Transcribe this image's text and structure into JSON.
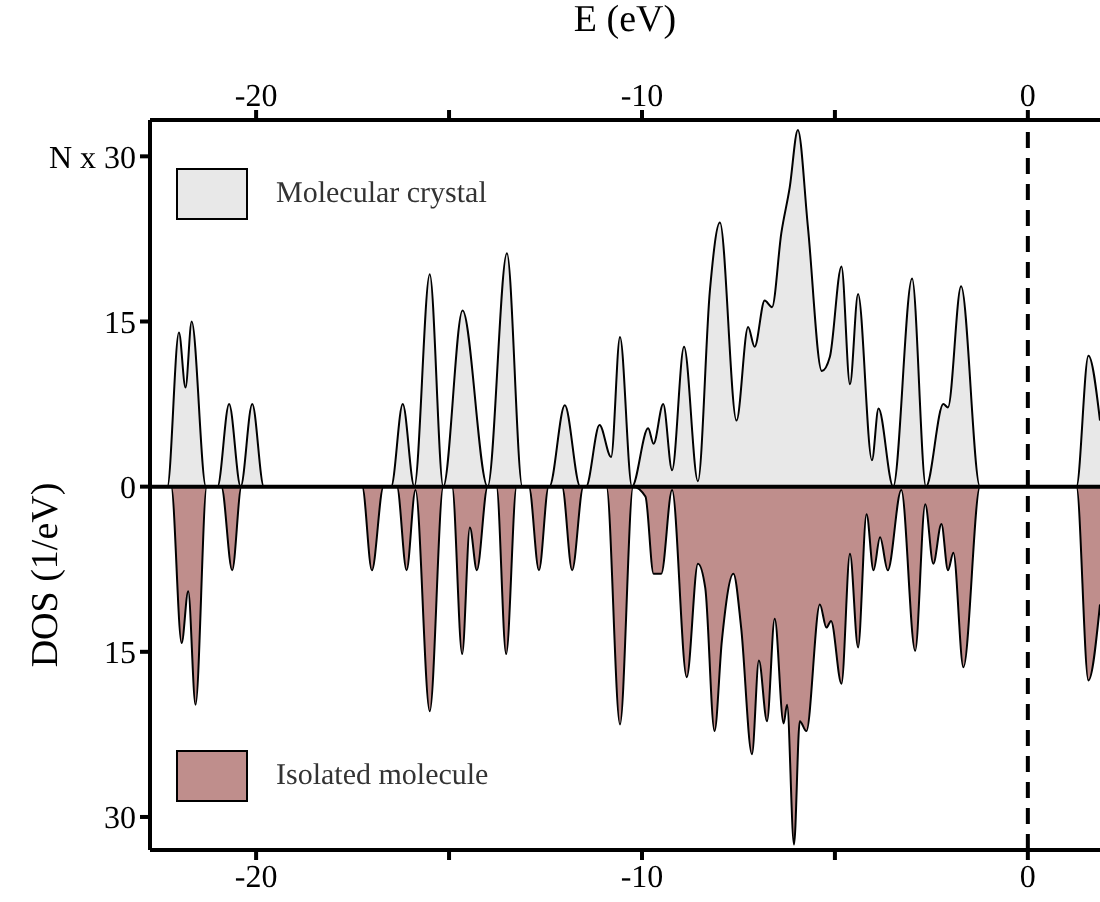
{
  "chart_data": {
    "type": "area",
    "x2label": "E (eV)",
    "ylabel": "DOS (1/eV)",
    "xlim": [
      -22.75,
      1.87
    ],
    "xticks": [
      -20,
      {
        "value": -15,
        "label": null
      },
      -10,
      {
        "value": -5,
        "label": null
      },
      0
    ],
    "x2lim": [
      -22.75,
      1.87
    ],
    "x2ticks": [
      -20,
      {
        "value": -15,
        "label": null
      },
      -10,
      {
        "value": -5,
        "label": null
      },
      0
    ],
    "ylim": [
      -33,
      33.3
    ],
    "yticks": [
      {
        "value": 30,
        "label": "N x 30"
      },
      15,
      0,
      {
        "value": -15,
        "label": "15"
      },
      {
        "value": -30,
        "label": "30"
      }
    ],
    "grid": false,
    "legend": "left",
    "ref_lines": [
      {
        "axis": "y",
        "value": 0,
        "line_style": "solid"
      },
      {
        "axis": "x",
        "value": 0,
        "line_style": "dashed"
      }
    ],
    "series": [
      {
        "name": "Molecular crystal",
        "color": "#e8e8e8",
        "x": [
          -22.75,
          -22.3,
          -22.0,
          -21.83,
          -21.67,
          -21.3,
          -21.0,
          -20.7,
          -20.4,
          -20.1,
          -19.8,
          -16.5,
          -16.2,
          -15.9,
          -15.5,
          -15.15,
          -14.65,
          -14.0,
          -13.5,
          -13.1,
          -12.4,
          -12.0,
          -11.6,
          -11.45,
          -11.1,
          -10.8,
          -10.57,
          -10.26,
          -9.84,
          -9.7,
          -9.45,
          -9.22,
          -8.91,
          -8.55,
          -8.24,
          -7.98,
          -7.55,
          -7.25,
          -7.08,
          -6.82,
          -6.63,
          -6.39,
          -6.17,
          -5.96,
          -5.7,
          -5.34,
          -5.13,
          -4.83,
          -4.61,
          -4.4,
          -4.04,
          -3.87,
          -3.49,
          -3.0,
          -2.64,
          -2.19,
          -2.07,
          -1.73,
          -1.24,
          1.26,
          1.57,
          1.87
        ],
        "values": [
          0,
          0,
          14,
          9,
          15,
          0,
          0,
          7.5,
          0,
          7.5,
          0,
          0,
          7.5,
          0,
          19.3,
          0,
          16,
          0,
          21.2,
          0,
          0,
          7.4,
          0,
          0,
          5.6,
          2.7,
          13.6,
          0,
          5.3,
          3.9,
          7.5,
          1.5,
          12.7,
          0.5,
          17.8,
          24,
          6,
          14.5,
          12.7,
          16.9,
          16.3,
          23,
          27.2,
          32.4,
          23.6,
          10.5,
          11.8,
          20,
          9.3,
          17.5,
          2.4,
          7.1,
          0,
          18.9,
          0,
          7.5,
          7.2,
          18.2,
          0,
          0,
          11.9,
          6
        ]
      },
      {
        "name": "Isolated molecule",
        "color": "#bf8e8c",
        "x": [
          -22.75,
          -22.2,
          -21.93,
          -21.76,
          -21.57,
          -21.28,
          -20.9,
          -20.62,
          -20.38,
          -17.25,
          -17.0,
          -16.7,
          -16.35,
          -16.1,
          -15.87,
          -15.5,
          -15.15,
          -14.92,
          -14.66,
          -14.46,
          -14.28,
          -14.0,
          -13.77,
          -13.52,
          -13.25,
          -12.93,
          -12.67,
          -12.42,
          -12.07,
          -11.81,
          -11.52,
          -10.92,
          -10.57,
          -10.23,
          -9.91,
          -9.7,
          -9.5,
          -9.22,
          -8.84,
          -8.55,
          -8.36,
          -8.12,
          -7.93,
          -7.63,
          -7.43,
          -7.15,
          -6.97,
          -6.76,
          -6.56,
          -6.33,
          -6.24,
          -6.06,
          -5.91,
          -5.74,
          -5.39,
          -5.22,
          -5.1,
          -4.83,
          -4.61,
          -4.4,
          -4.18,
          -4.0,
          -3.83,
          -3.63,
          -3.28,
          -2.92,
          -2.66,
          -2.45,
          -2.24,
          -2.07,
          -1.93,
          -1.67,
          -1.24,
          1.26,
          1.57,
          1.87
        ],
        "values": [
          0,
          0,
          -14.2,
          -9.5,
          -19.8,
          0,
          0,
          -7.6,
          0,
          0,
          -7.6,
          0,
          0,
          -7.6,
          -0.3,
          -20.4,
          0,
          0,
          -15.2,
          -3.7,
          -7.6,
          0,
          0,
          -15.2,
          0,
          0,
          -7.6,
          0,
          0,
          -7.6,
          0,
          0,
          -21.6,
          0,
          -0.9,
          -7.9,
          -7.9,
          -0.3,
          -17.3,
          -7.0,
          -9.2,
          -22.2,
          -14.0,
          -7.9,
          -12.8,
          -24.3,
          -15.8,
          -21.3,
          -12.0,
          -21.5,
          -19.8,
          -32.5,
          -21.3,
          -22.2,
          -10.7,
          -12.8,
          -12.2,
          -17.9,
          -6.1,
          -14.6,
          -2.5,
          -7.6,
          -4.6,
          -7.6,
          -0.3,
          -14.9,
          -1.6,
          -7.0,
          -3.4,
          -7.6,
          -6.0,
          -16.4,
          0,
          0,
          -17.6,
          -10.7
        ]
      }
    ]
  }
}
